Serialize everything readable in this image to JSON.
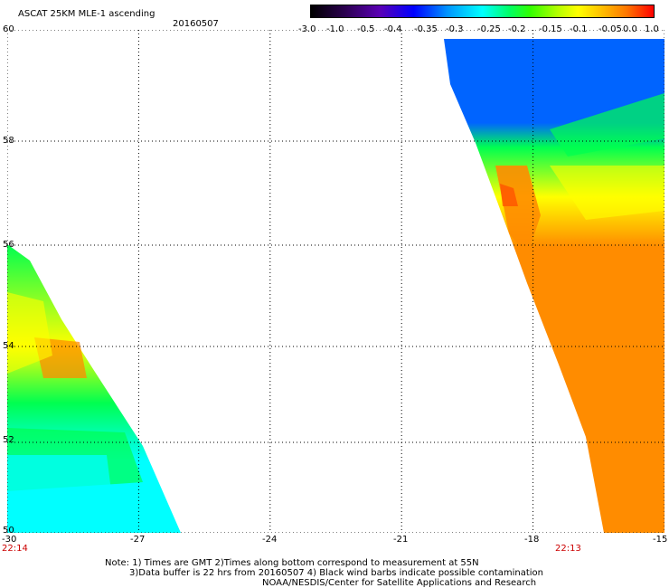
{
  "header": {
    "title": "ASCAT 25KM MLE-1 ascending",
    "date": "20160507"
  },
  "colorbar": {
    "labels": [
      "-3.0",
      "-1.0",
      "-0.5",
      "-0.4",
      "-0.35",
      "-0.3",
      "-0.25",
      "-0.2",
      "-0.15",
      "-0.1",
      "-0.05",
      "0.0",
      "1.0"
    ]
  },
  "axes": {
    "y_labels": [
      "60",
      "58",
      "56",
      "54",
      "52",
      "50"
    ],
    "x_labels": [
      "-30",
      "-27",
      "-24",
      "-21",
      "-18",
      "-15"
    ],
    "time_left": "22:14",
    "time_right": "22:13"
  },
  "footer": {
    "line1": "Note: 1) Times are GMT 2)Times along bottom correspond to measurement at 55N",
    "line2": "3)Data buffer is 22 hrs from 20160507 4) Black wind barbs indicate possible contamination",
    "line3": "NOAA/NESDIS/Center for Satellite Applications and Research"
  },
  "colors": {
    "blue": "#0064ff",
    "cyan": "#00ffff",
    "green": "#00ff50",
    "yellow": "#ffff00",
    "orange": "#ff8c00",
    "red": "#ff4a00"
  }
}
